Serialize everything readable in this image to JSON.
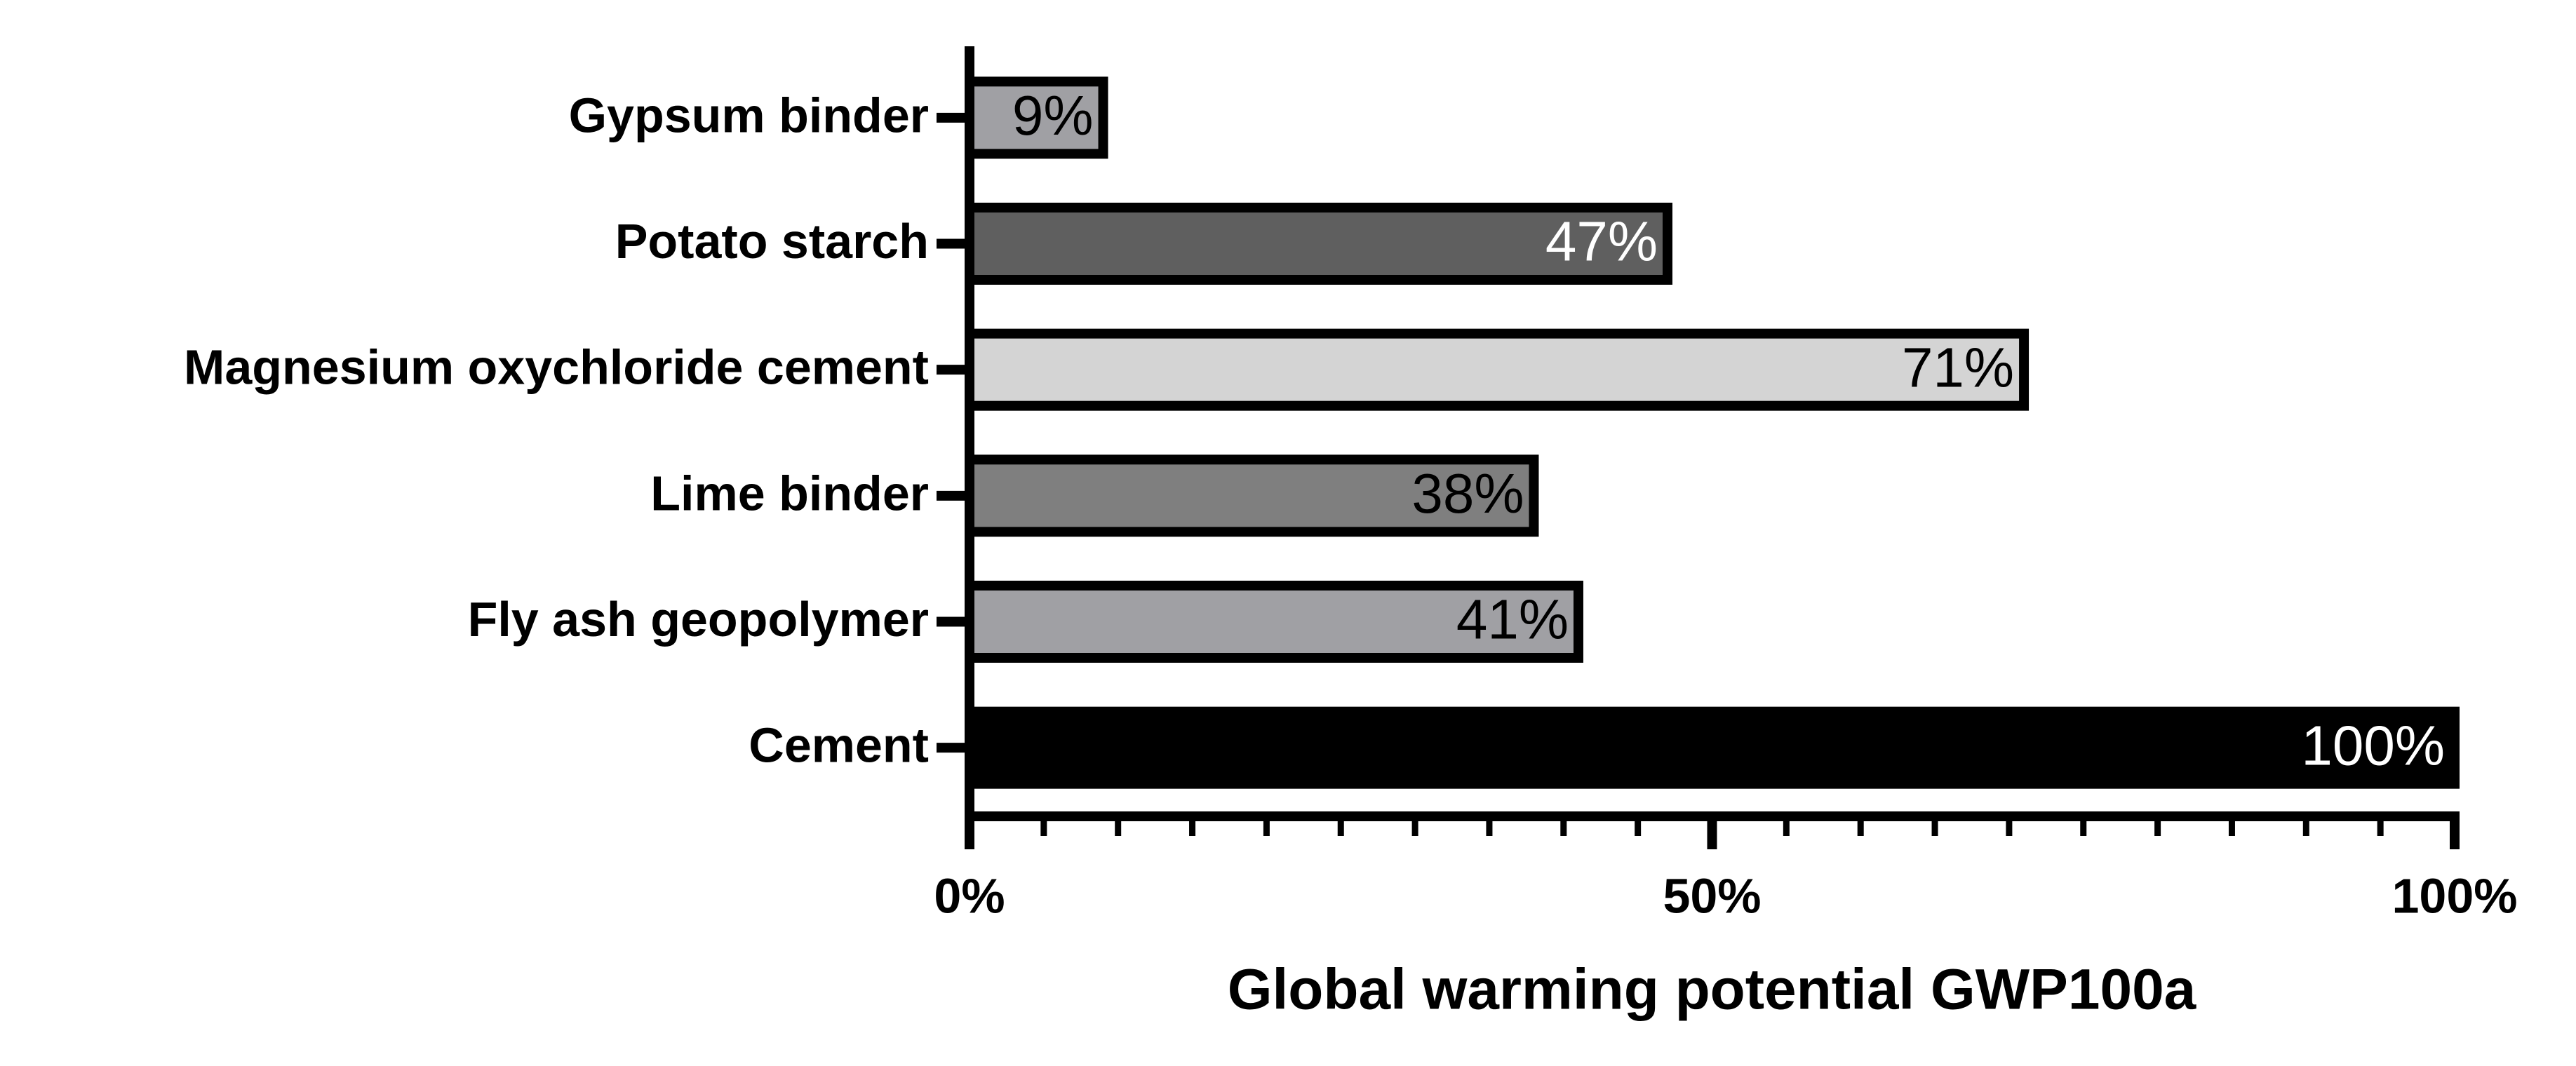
{
  "chart_data": {
    "type": "barh",
    "xlabel": "Global warming potential GWP100a",
    "categories": [
      "Gypsum binder",
      "Potato starch",
      "Magnesium oxychloride cement",
      "Lime binder",
      "Fly ash geopolymer",
      "Cement"
    ],
    "values": [
      9,
      47,
      71,
      38,
      41,
      100
    ],
    "value_labels": [
      "9%",
      "47%",
      "71%",
      "38%",
      "41%",
      "100%"
    ],
    "colors": [
      "#a0a0a4",
      "#5f5f5f",
      "#d4d4d4",
      "#7f7f7f",
      "#a0a0a4",
      "#000000"
    ],
    "xlim": [
      0,
      100
    ],
    "xticks": [
      {
        "value": 0,
        "label": "0%"
      },
      {
        "value": 50,
        "label": "50%"
      },
      {
        "value": 100,
        "label": "100%"
      }
    ],
    "xminorticks": [
      5,
      10,
      15,
      20,
      25,
      30,
      35,
      40,
      45,
      55,
      60,
      65,
      70,
      75,
      80,
      85,
      90,
      95
    ]
  }
}
